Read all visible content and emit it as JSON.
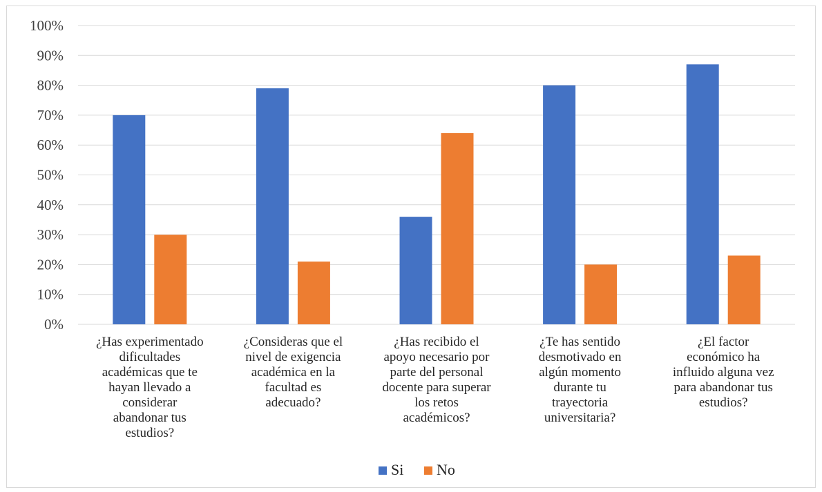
{
  "colors": {
    "si": "#4472C4",
    "no": "#ED7D31",
    "grid": "#d9d9d9"
  },
  "chart_data": {
    "type": "bar",
    "categories": [
      [
        "¿Has experimentado",
        "dificultades",
        "académicas que te",
        "hayan llevado a",
        "considerar",
        "abandonar tus",
        "estudios?"
      ],
      [
        "¿Consideras que el",
        "nivel de exigencia",
        "académica en la",
        "facultad es",
        "adecuado?"
      ],
      [
        "¿Has recibido el",
        "apoyo necesario por",
        "parte del personal",
        "docente para superar",
        "los retos",
        "académicos?"
      ],
      [
        "¿Te has sentido",
        "desmotivado en",
        "algún momento",
        "durante tu",
        "trayectoria",
        "universitaria?"
      ],
      [
        "¿El factor",
        "económico ha",
        "influido alguna vez",
        "para abandonar tus",
        "estudios?"
      ]
    ],
    "series": [
      {
        "name": "Si",
        "values": [
          70,
          79,
          36,
          80,
          87
        ]
      },
      {
        "name": "No",
        "values": [
          30,
          21,
          64,
          20,
          23
        ]
      }
    ],
    "ylim": [
      0,
      100
    ],
    "yticks": [
      "0%",
      "10%",
      "20%",
      "30%",
      "40%",
      "50%",
      "60%",
      "70%",
      "80%",
      "90%",
      "100%"
    ],
    "grid": true,
    "legend": "bottom-center"
  }
}
